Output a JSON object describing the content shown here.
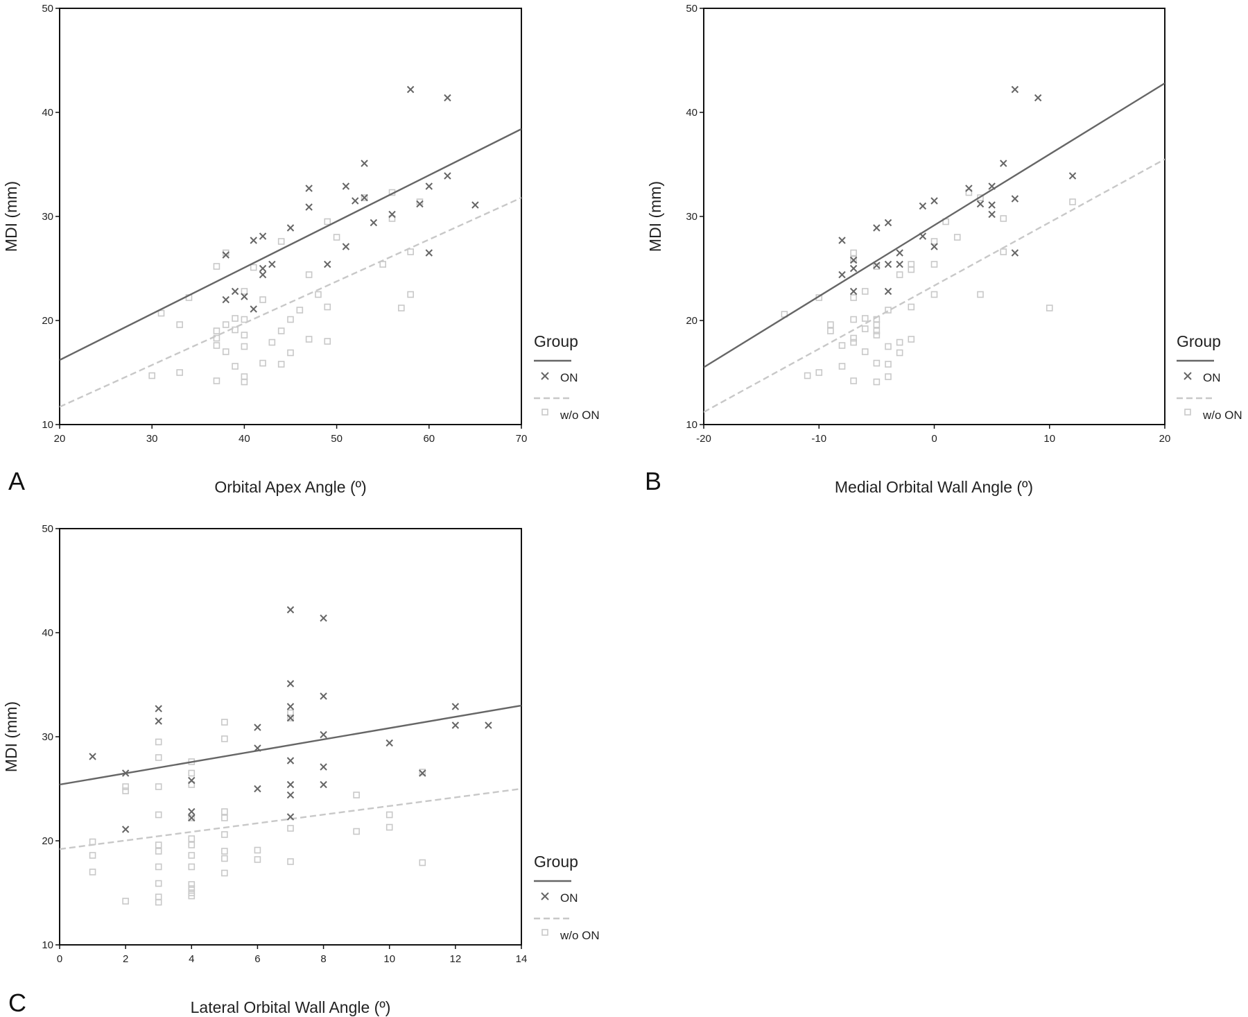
{
  "chart_data": [
    {
      "panel": "A",
      "type": "scatter",
      "xlabel": "Orbital Apex Angle (º)",
      "ylabel": "MDI (mm)",
      "xlim": [
        20,
        70
      ],
      "ylim": [
        10,
        50
      ],
      "xticks": [
        20,
        30,
        40,
        50,
        60,
        70
      ],
      "yticks": [
        10,
        20,
        30,
        40,
        50
      ],
      "grid": false,
      "legend": {
        "title": "Group",
        "placement": "right"
      },
      "series": [
        {
          "name": "ON",
          "color": "#666666",
          "marker": "x",
          "points": [
            [
              38,
              26.3
            ],
            [
              38,
              22
            ],
            [
              39,
              22.8
            ],
            [
              40,
              22.3
            ],
            [
              41,
              27.7
            ],
            [
              41,
              21.1
            ],
            [
              42,
              28.1
            ],
            [
              42,
              25
            ],
            [
              42,
              24.4
            ],
            [
              43,
              25.4
            ],
            [
              45,
              28.9
            ],
            [
              47,
              32.7
            ],
            [
              47,
              30.9
            ],
            [
              49,
              25.4
            ],
            [
              51,
              32.9
            ],
            [
              51,
              27.1
            ],
            [
              52,
              31.5
            ],
            [
              53,
              35.1
            ],
            [
              53,
              31.8
            ],
            [
              54,
              29.4
            ],
            [
              56,
              30.2
            ],
            [
              58,
              42.2
            ],
            [
              59,
              31.2
            ],
            [
              60,
              32.9
            ],
            [
              60,
              26.5
            ],
            [
              62,
              41.4
            ],
            [
              62,
              33.9
            ],
            [
              65,
              31.1
            ]
          ],
          "fit": [
            [
              20,
              16.2
            ],
            [
              70,
              38.4
            ]
          ]
        },
        {
          "name": "w/o ON",
          "color": "#c8c8c8",
          "marker": "square",
          "points": [
            [
              30,
              14.7
            ],
            [
              31,
              20.7
            ],
            [
              33,
              19.6
            ],
            [
              33,
              15
            ],
            [
              34,
              22.2
            ],
            [
              37,
              25.2
            ],
            [
              37,
              19
            ],
            [
              37,
              18.3
            ],
            [
              37,
              17.6
            ],
            [
              37,
              14.2
            ],
            [
              38,
              26.5
            ],
            [
              38,
              19.6
            ],
            [
              38,
              17
            ],
            [
              39,
              20.2
            ],
            [
              39,
              19.1
            ],
            [
              39,
              15.6
            ],
            [
              40,
              22.8
            ],
            [
              40,
              20.1
            ],
            [
              40,
              18.6
            ],
            [
              40,
              17.5
            ],
            [
              40,
              14.6
            ],
            [
              40,
              14.1
            ],
            [
              41,
              25.1
            ],
            [
              42,
              22
            ],
            [
              42,
              15.9
            ],
            [
              43,
              17.9
            ],
            [
              44,
              27.6
            ],
            [
              44,
              19
            ],
            [
              44,
              15.8
            ],
            [
              45,
              20.1
            ],
            [
              45,
              16.9
            ],
            [
              46,
              21
            ],
            [
              47,
              24.4
            ],
            [
              47,
              18.2
            ],
            [
              48,
              22.5
            ],
            [
              49,
              29.5
            ],
            [
              49,
              21.3
            ],
            [
              49,
              18
            ],
            [
              50,
              28
            ],
            [
              53,
              31.8
            ],
            [
              55,
              25.4
            ],
            [
              56,
              32.3
            ],
            [
              56,
              29.8
            ],
            [
              57,
              21.2
            ],
            [
              58,
              26.6
            ],
            [
              58,
              22.5
            ],
            [
              59,
              31.4
            ]
          ],
          "fit": [
            [
              20,
              11.7
            ],
            [
              70,
              31.8
            ]
          ]
        }
      ]
    },
    {
      "panel": "B",
      "type": "scatter",
      "xlabel": "Medial Orbital Wall Angle (º)",
      "ylabel": "MDI (mm)",
      "xlim": [
        -20,
        20
      ],
      "ylim": [
        10,
        50
      ],
      "xticks": [
        -20,
        -10,
        0,
        10,
        20
      ],
      "yticks": [
        10,
        20,
        30,
        40,
        50
      ],
      "grid": false,
      "legend": {
        "title": "Group",
        "placement": "right"
      },
      "series": [
        {
          "name": "ON",
          "color": "#666666",
          "marker": "x",
          "points": [
            [
              -8,
              27.7
            ],
            [
              -8,
              24.4
            ],
            [
              -7,
              25.8
            ],
            [
              -7,
              25
            ],
            [
              -7,
              22.8
            ],
            [
              -5,
              28.9
            ],
            [
              -5,
              25.3
            ],
            [
              -4,
              29.4
            ],
            [
              -4,
              25.4
            ],
            [
              -4,
              22.8
            ],
            [
              -3,
              26.5
            ],
            [
              -3,
              25.4
            ],
            [
              -1,
              31
            ],
            [
              -1,
              28.1
            ],
            [
              0,
              31.5
            ],
            [
              0,
              27.1
            ],
            [
              3,
              32.7
            ],
            [
              4,
              31.2
            ],
            [
              5,
              32.9
            ],
            [
              5,
              31.1
            ],
            [
              5,
              30.2
            ],
            [
              6,
              35.1
            ],
            [
              7,
              42.2
            ],
            [
              7,
              31.7
            ],
            [
              7,
              26.5
            ],
            [
              9,
              41.4
            ],
            [
              12,
              33.9
            ]
          ],
          "fit": [
            [
              -20,
              15.5
            ],
            [
              20,
              42.8
            ]
          ]
        },
        {
          "name": "w/o ON",
          "color": "#c8c8c8",
          "marker": "square",
          "points": [
            [
              -13,
              20.6
            ],
            [
              -11,
              14.7
            ],
            [
              -10,
              22.2
            ],
            [
              -10,
              15
            ],
            [
              -9,
              19.6
            ],
            [
              -9,
              19
            ],
            [
              -8,
              17.6
            ],
            [
              -8,
              15.6
            ],
            [
              -7,
              26.5
            ],
            [
              -7,
              25.9
            ],
            [
              -7,
              22.2
            ],
            [
              -7,
              20.1
            ],
            [
              -7,
              18.3
            ],
            [
              -7,
              17.9
            ],
            [
              -7,
              14.2
            ],
            [
              -6,
              22.8
            ],
            [
              -6,
              20.2
            ],
            [
              -6,
              19.2
            ],
            [
              -6,
              17
            ],
            [
              -5,
              25.2
            ],
            [
              -5,
              20.1
            ],
            [
              -5,
              19.6
            ],
            [
              -5,
              19
            ],
            [
              -5,
              18.6
            ],
            [
              -5,
              15.9
            ],
            [
              -5,
              14.1
            ],
            [
              -4,
              21
            ],
            [
              -4,
              17.5
            ],
            [
              -4,
              15.8
            ],
            [
              -4,
              14.6
            ],
            [
              -3,
              24.4
            ],
            [
              -3,
              17.9
            ],
            [
              -3,
              16.9
            ],
            [
              -2,
              25.4
            ],
            [
              -2,
              24.9
            ],
            [
              -2,
              21.3
            ],
            [
              -2,
              18.2
            ],
            [
              0,
              27.6
            ],
            [
              0,
              25.4
            ],
            [
              0,
              22.5
            ],
            [
              1,
              29.5
            ],
            [
              2,
              28
            ],
            [
              3,
              32.3
            ],
            [
              4,
              31.8
            ],
            [
              4,
              22.5
            ],
            [
              6,
              29.8
            ],
            [
              6,
              26.6
            ],
            [
              10,
              21.2
            ],
            [
              12,
              31.4
            ]
          ],
          "fit": [
            [
              -20,
              11.2
            ],
            [
              20,
              35.5
            ]
          ]
        }
      ]
    },
    {
      "panel": "C",
      "type": "scatter",
      "xlabel": "Lateral Orbital Wall Angle (º)",
      "ylabel": "MDI (mm)",
      "xlim": [
        0,
        14
      ],
      "ylim": [
        10,
        50
      ],
      "xticks": [
        0,
        2,
        4,
        6,
        8,
        10,
        12,
        14
      ],
      "yticks": [
        10,
        20,
        30,
        40,
        50
      ],
      "grid": false,
      "legend": {
        "title": "Group",
        "placement": "right"
      },
      "series": [
        {
          "name": "ON",
          "color": "#666666",
          "marker": "x",
          "points": [
            [
              1,
              28.1
            ],
            [
              2,
              26.5
            ],
            [
              2,
              21.1
            ],
            [
              3,
              32.7
            ],
            [
              3,
              31.5
            ],
            [
              4,
              25.8
            ],
            [
              4,
              22.8
            ],
            [
              4,
              22.2
            ],
            [
              6,
              30.9
            ],
            [
              6,
              28.9
            ],
            [
              6,
              25
            ],
            [
              7,
              42.2
            ],
            [
              7,
              35.1
            ],
            [
              7,
              32.9
            ],
            [
              7,
              31.8
            ],
            [
              7,
              27.7
            ],
            [
              7,
              25.4
            ],
            [
              7,
              24.4
            ],
            [
              7,
              22.3
            ],
            [
              8,
              41.4
            ],
            [
              8,
              33.9
            ],
            [
              8,
              30.2
            ],
            [
              8,
              27.1
            ],
            [
              8,
              25.4
            ],
            [
              10,
              29.4
            ],
            [
              11,
              26.5
            ],
            [
              12,
              32.9
            ],
            [
              12,
              31.1
            ],
            [
              13,
              31.1
            ]
          ],
          "fit": [
            [
              0,
              25.4
            ],
            [
              14,
              33
            ]
          ]
        },
        {
          "name": "w/o ON",
          "color": "#c8c8c8",
          "marker": "square",
          "points": [
            [
              1,
              19.9
            ],
            [
              1,
              18.6
            ],
            [
              1,
              17
            ],
            [
              2,
              25.2
            ],
            [
              2,
              24.8
            ],
            [
              2,
              14.2
            ],
            [
              3,
              29.5
            ],
            [
              3,
              28
            ],
            [
              3,
              25.2
            ],
            [
              3,
              22.5
            ],
            [
              3,
              19.6
            ],
            [
              3,
              19
            ],
            [
              3,
              17.5
            ],
            [
              3,
              15.9
            ],
            [
              3,
              14.6
            ],
            [
              3,
              14.1
            ],
            [
              4,
              27.6
            ],
            [
              4,
              26.5
            ],
            [
              4,
              25.4
            ],
            [
              4,
              22.2
            ],
            [
              4,
              20.2
            ],
            [
              4,
              19.6
            ],
            [
              4,
              18.6
            ],
            [
              4,
              17.5
            ],
            [
              4,
              15.8
            ],
            [
              4,
              15.4
            ],
            [
              4,
              15
            ],
            [
              4,
              14.7
            ],
            [
              5,
              31.4
            ],
            [
              5,
              29.8
            ],
            [
              5,
              22.8
            ],
            [
              5,
              22.2
            ],
            [
              5,
              20.6
            ],
            [
              5,
              19
            ],
            [
              5,
              18.3
            ],
            [
              5,
              16.9
            ],
            [
              6,
              19.1
            ],
            [
              6,
              18.2
            ],
            [
              7,
              32.3
            ],
            [
              7,
              31.8
            ],
            [
              7,
              21.2
            ],
            [
              7,
              18
            ],
            [
              9,
              24.4
            ],
            [
              9,
              20.9
            ],
            [
              10,
              22.5
            ],
            [
              10,
              21.3
            ],
            [
              11,
              26.6
            ],
            [
              11,
              17.9
            ]
          ],
          "fit": [
            [
              0,
              19.2
            ],
            [
              14,
              25
            ]
          ]
        }
      ]
    }
  ],
  "panels": [
    {
      "letter": "A",
      "xlabel": "Orbital Apex Angle (º)",
      "ylabel": "MDI (mm)",
      "legend": {
        "title": "Group",
        "items": [
          "ON",
          "w/o ON"
        ]
      }
    },
    {
      "letter": "B",
      "xlabel": "Medial Orbital Wall Angle (º)",
      "ylabel": "MDI (mm)",
      "legend": {
        "title": "Group",
        "items": [
          "ON",
          "w/o ON"
        ]
      }
    },
    {
      "letter": "C",
      "xlabel": "Lateral Orbital Wall Angle (º)",
      "ylabel": "MDI (mm)",
      "legend": {
        "title": "Group",
        "items": [
          "ON",
          "w/o ON"
        ]
      }
    }
  ]
}
